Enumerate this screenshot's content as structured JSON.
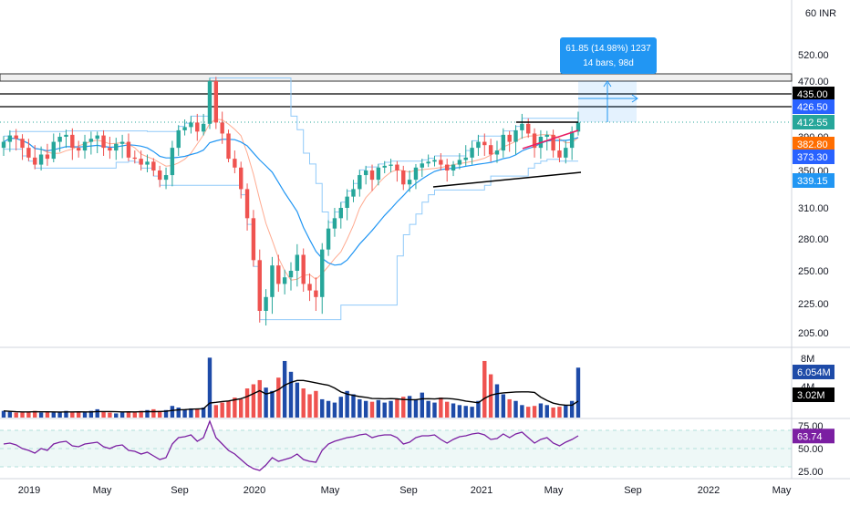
{
  "chart_data": {
    "type": "candlestick",
    "currency_label": "60 INR",
    "price_axis": {
      "ticks": [
        "520.00",
        "470.00",
        "435.00",
        "426.50",
        "412.55",
        "390.00",
        "382.80",
        "373.30",
        "350.00",
        "339.15",
        "310.00",
        "280.00",
        "250.00",
        "225.00",
        "205.00"
      ],
      "tick_values": [
        520,
        470,
        435,
        426.5,
        412.55,
        390,
        382.8,
        373.3,
        350,
        339.15,
        310,
        280,
        250,
        225,
        205
      ]
    },
    "price_badges": [
      {
        "label": "435.00",
        "value": 435,
        "color": "#000000"
      },
      {
        "label": "426.50",
        "value": 426.5,
        "color": "#2962ff"
      },
      {
        "label": "412.55",
        "value": 412.55,
        "color": "#26a69a"
      },
      {
        "label": "382.80",
        "value": 382.8,
        "color": "#ff6d00"
      },
      {
        "label": "373.30",
        "value": 373.3,
        "color": "#2962ff"
      },
      {
        "label": "339.15",
        "value": 339.15,
        "color": "#2196f3"
      }
    ],
    "volume_axis": {
      "ticks": [
        "8M",
        "4M"
      ]
    },
    "volume_badges": [
      {
        "label": "6.054M",
        "color": "#1e4ba8"
      },
      {
        "label": "3.02M",
        "color": "#000000"
      }
    ],
    "rsi_axis": {
      "ticks": [
        "75.00",
        "50.00",
        "25.00"
      ],
      "tick_values": [
        75,
        50,
        25
      ]
    },
    "rsi_badge": {
      "label": "63.74",
      "value": 63.74,
      "color": "#7b1fa2"
    },
    "time_axis": [
      "2019",
      "May",
      "Sep",
      "2020",
      "May",
      "Sep",
      "2021",
      "May",
      "Sep",
      "2022",
      "May"
    ],
    "measure_tooltip": {
      "line1": "61.85 (14.98%) 1237",
      "line2": "14 bars, 98d"
    },
    "horizontal_levels": [
      435,
      426.5
    ],
    "series_close": [
      385,
      392,
      388,
      380,
      372,
      360,
      375,
      370,
      385,
      390,
      393,
      380,
      378,
      385,
      388,
      392,
      380,
      378,
      383,
      385,
      372,
      370,
      360,
      365,
      350,
      340,
      345,
      380,
      400,
      405,
      412,
      398,
      410,
      470,
      412,
      395,
      370,
      355,
      330,
      300,
      260,
      220,
      230,
      255,
      240,
      245,
      250,
      265,
      240,
      235,
      230,
      270,
      290,
      300,
      310,
      322,
      330,
      345,
      350,
      340,
      355,
      358,
      360,
      350,
      335,
      340,
      355,
      362,
      365,
      368,
      360,
      350,
      360,
      368,
      372,
      380,
      385,
      382,
      375,
      378,
      393,
      385,
      400,
      410,
      395,
      380,
      390,
      393,
      378,
      372,
      380,
      398,
      412
    ],
    "series_volume_mil": [
      0.8,
      0.7,
      0.6,
      0.6,
      0.7,
      0.8,
      0.6,
      0.7,
      0.6,
      0.7,
      0.8,
      0.6,
      0.7,
      0.6,
      0.8,
      1.0,
      0.7,
      0.6,
      0.5,
      0.6,
      0.7,
      0.6,
      0.8,
      0.9,
      1.0,
      0.8,
      0.9,
      1.4,
      1.2,
      1.0,
      1.1,
      1.0,
      1.2,
      7.2,
      1.5,
      1.8,
      2.0,
      2.4,
      2.2,
      3.5,
      4.0,
      4.5,
      3.6,
      3.2,
      4.8,
      6.8,
      5.5,
      4.2,
      3.5,
      2.8,
      3.2,
      2.2,
      2.0,
      1.8,
      2.5,
      3.2,
      2.8,
      2.2,
      2.0,
      1.9,
      2.1,
      1.8,
      2.0,
      2.2,
      2.5,
      2.6,
      2.2,
      3.0,
      2.0,
      1.8,
      2.4,
      1.9,
      1.7,
      1.5,
      1.4,
      1.3,
      2.0,
      6.8,
      5.2,
      4.0,
      2.8,
      2.2,
      2.0,
      1.5,
      1.3,
      1.4,
      1.7,
      1.5,
      1.2,
      1.3,
      1.5,
      2.0,
      6.0
    ],
    "series_rsi": [
      55,
      56,
      54,
      50,
      48,
      45,
      50,
      48,
      55,
      57,
      58,
      53,
      52,
      55,
      56,
      57,
      52,
      50,
      53,
      54,
      48,
      47,
      44,
      46,
      42,
      38,
      40,
      55,
      62,
      63,
      65,
      58,
      62,
      80,
      62,
      55,
      48,
      44,
      38,
      32,
      28,
      26,
      32,
      40,
      36,
      38,
      40,
      44,
      38,
      36,
      35,
      48,
      55,
      58,
      60,
      62,
      63,
      65,
      66,
      62,
      64,
      65,
      65,
      62,
      55,
      57,
      62,
      64,
      64,
      65,
      60,
      56,
      60,
      63,
      64,
      66,
      67,
      65,
      60,
      61,
      66,
      62,
      66,
      68,
      62,
      56,
      60,
      62,
      56,
      53,
      57,
      60,
      64
    ]
  }
}
